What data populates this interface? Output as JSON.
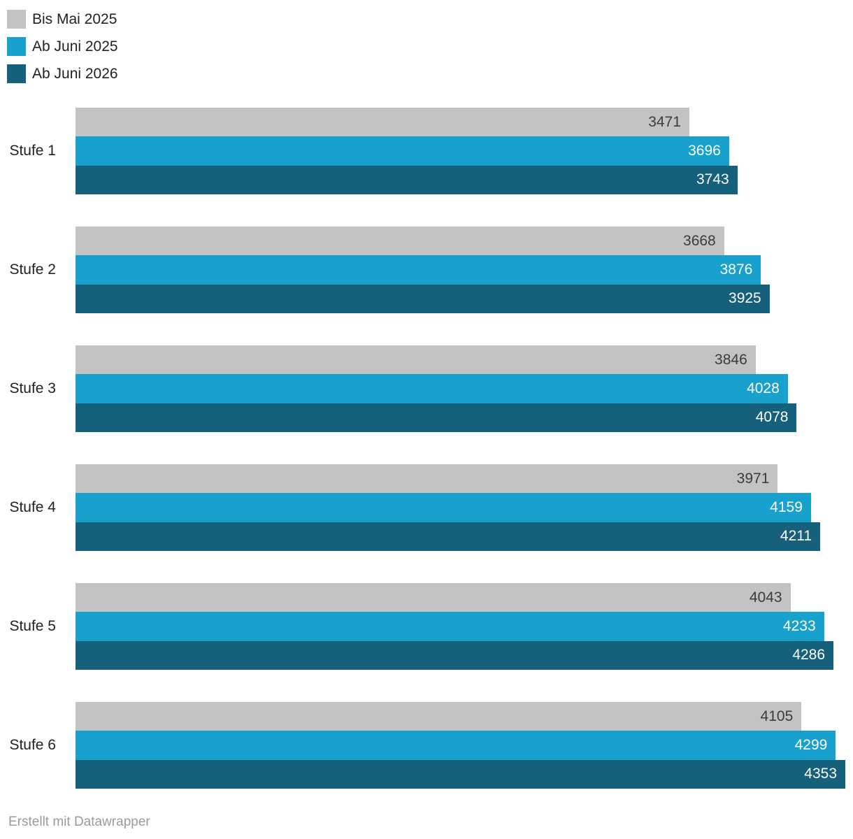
{
  "chart_data": {
    "type": "bar",
    "orientation": "horizontal",
    "categories": [
      "Stufe 1",
      "Stufe 2",
      "Stufe 3",
      "Stufe 4",
      "Stufe 5",
      "Stufe 6"
    ],
    "series": [
      {
        "name": "Bis Mai 2025",
        "color": "#c3c3c3",
        "label_color": "#3b3b3b",
        "values": [
          3471,
          3668,
          3846,
          3971,
          4043,
          4105
        ]
      },
      {
        "name": "Ab Juni 2025",
        "color": "#18a1cd",
        "label_color": "#ffffff",
        "values": [
          3696,
          3876,
          4028,
          4159,
          4233,
          4299
        ]
      },
      {
        "name": "Ab Juni 2026",
        "color": "#15607a",
        "label_color": "#ffffff",
        "values": [
          3743,
          3925,
          4078,
          4211,
          4286,
          4353
        ]
      }
    ],
    "xlim": [
      0,
      4353
    ],
    "grid": false,
    "legend_position": "top-left",
    "value_labels": "inside-end"
  },
  "footer": {
    "text": "Erstellt mit Datawrapper"
  }
}
